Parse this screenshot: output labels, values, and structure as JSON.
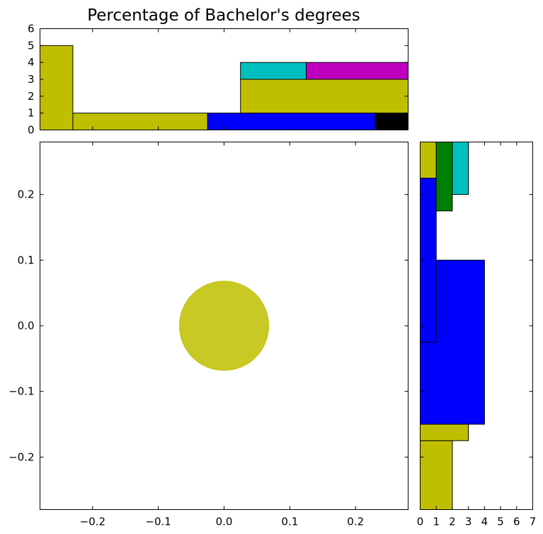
{
  "chart_data": {
    "type": "scatter",
    "title": "Percentage of Bachelor's degrees",
    "main": {
      "xlim": [
        -0.28,
        0.28
      ],
      "ylim": [
        -0.28,
        0.28
      ],
      "xticks": [
        -0.2,
        -0.1,
        0.0,
        0.1,
        0.2
      ],
      "xtick_labels": [
        "−0.2",
        "−0.1",
        "0.0",
        "0.1",
        "0.2"
      ],
      "yticks": [
        -0.2,
        -0.1,
        0.0,
        0.1,
        0.2
      ],
      "ytick_labels": [
        "−0.2",
        "−0.1",
        "0.0",
        "0.1",
        "0.2"
      ],
      "points": [
        {
          "x": 0.0,
          "y": 0.0,
          "color": "#bfbf00"
        }
      ]
    },
    "top_histogram": {
      "type": "bar",
      "orientation": "vertical",
      "xlim": [
        -0.28,
        0.28
      ],
      "ylim": [
        0,
        6
      ],
      "yticks": [
        0,
        1,
        2,
        3,
        4,
        5,
        6
      ],
      "ytick_labels": [
        "0",
        "1",
        "2",
        "3",
        "4",
        "5",
        "6"
      ],
      "bars": [
        {
          "x0": -0.28,
          "x1": -0.23,
          "base": 0,
          "height": 5,
          "color": "#bfbf00"
        },
        {
          "x0": -0.23,
          "x1": -0.025,
          "base": 0,
          "height": 1,
          "color": "#bfbf00"
        },
        {
          "x0": -0.025,
          "x1": 0.23,
          "base": 0,
          "height": 1,
          "color": "#0000ff"
        },
        {
          "x0": 0.23,
          "x1": 0.28,
          "base": 0,
          "height": 1,
          "color": "#000000"
        },
        {
          "x0": 0.025,
          "x1": 0.28,
          "base": 1,
          "height": 2,
          "color": "#bfbf00"
        },
        {
          "x0": 0.025,
          "x1": 0.125,
          "base": 3,
          "height": 1,
          "color": "#00bfbf"
        },
        {
          "x0": 0.125,
          "x1": 0.28,
          "base": 3,
          "height": 1,
          "color": "#bf00bf"
        }
      ]
    },
    "right_histogram": {
      "type": "bar",
      "orientation": "horizontal",
      "xlim": [
        0,
        7
      ],
      "ylim": [
        -0.28,
        0.28
      ],
      "xticks": [
        0,
        1,
        2,
        3,
        4,
        5,
        6,
        7
      ],
      "xtick_labels": [
        "0",
        "1",
        "2",
        "3",
        "4",
        "5",
        "6",
        "7"
      ],
      "bars": [
        {
          "y0": -0.28,
          "y1": -0.175,
          "base": 0,
          "width": 2,
          "color": "#bfbf00"
        },
        {
          "y0": -0.175,
          "y1": 0.075,
          "base": 0,
          "width": 3,
          "color": "#bfbf00"
        },
        {
          "y0": -0.15,
          "y1": 0.1,
          "base": 0,
          "width": 4,
          "color": "#0000ff"
        },
        {
          "y0": -0.025,
          "y1": 0.225,
          "base": 0,
          "width": 1,
          "color": "#0000ff"
        },
        {
          "y0": 0.225,
          "y1": 0.28,
          "base": 0,
          "width": 1,
          "color": "#bfbf00"
        },
        {
          "y0": 0.175,
          "y1": 0.28,
          "base": 1,
          "width": 1,
          "color": "#008000"
        },
        {
          "y0": 0.2,
          "y1": 0.28,
          "base": 2,
          "width": 1,
          "color": "#00bfbf"
        }
      ]
    }
  }
}
